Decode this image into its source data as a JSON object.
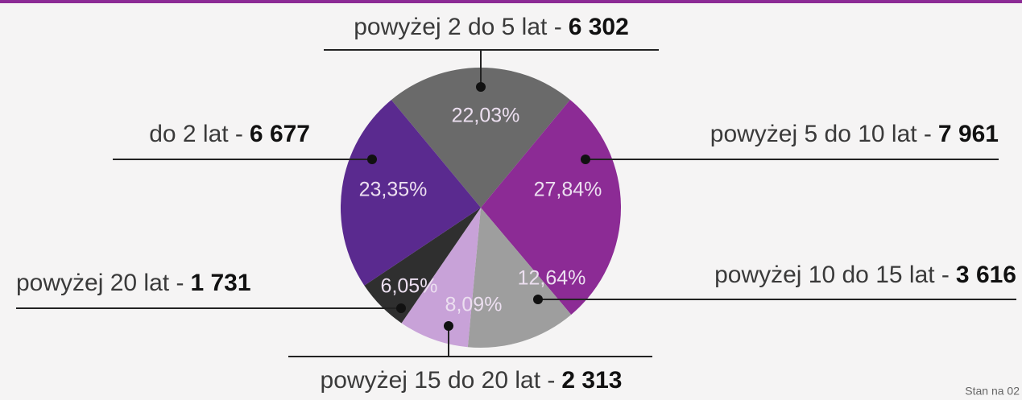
{
  "chart_data": {
    "type": "pie",
    "categories": [
      "powyżej 2 do 5 lat -",
      "powyżej 5 do 10 lat -",
      "powyżej 10 do 15 lat -",
      "powyżej 15 do 20 lat -",
      "powyżej 20  lat -",
      "do 2 lat -"
    ],
    "values": [
      22.03,
      27.84,
      12.64,
      8.09,
      6.05,
      23.35
    ],
    "value_labels": [
      "22,03%",
      "27,84%",
      "12,64%",
      "8,09%",
      "6,05%",
      "23,35%"
    ],
    "counts": [
      6302,
      7961,
      3616,
      2313,
      1731,
      6677
    ],
    "count_labels": [
      "6 302",
      "7 961",
      "3 616",
      "2 313",
      "1 731",
      "6 677"
    ],
    "colors": [
      "#6a6a6a",
      "#8c2b95",
      "#9e9e9e",
      "#c8a2d8",
      "#2f2f2f",
      "#5a2a8f"
    ],
    "footnote": "Stan na 02"
  }
}
